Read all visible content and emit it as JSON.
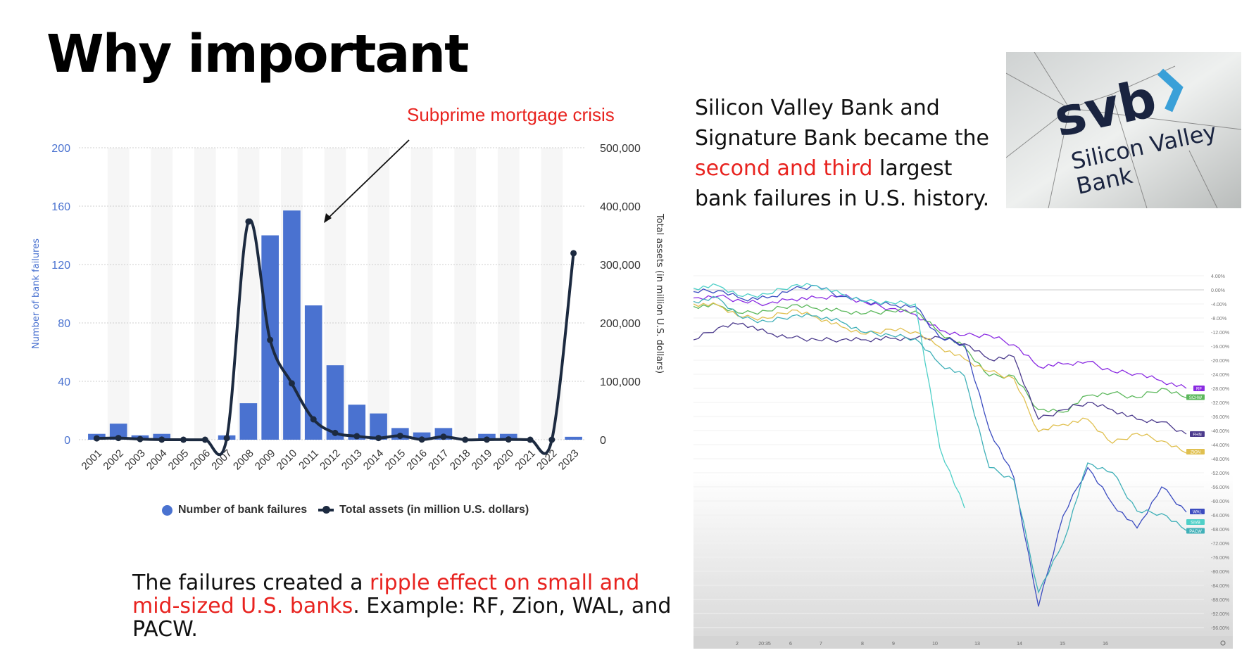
{
  "slide": {
    "title": "Why important",
    "annotation": "Subprime mortgage crisis",
    "right_text": {
      "part1": "Silicon Valley Bank and Signature Bank became the ",
      "highlight": "second and third",
      "part2": " largest bank failures in U.S. history."
    },
    "bottom_text": {
      "part1": "The failures created a ",
      "highlight": "ripple effect on small and mid-sized U.S. banks",
      "part2": ". Example: RF, Zion,  WAL, and PACW."
    },
    "image_logo": {
      "brand": "svb",
      "line1": "Silicon Valley",
      "line2": "Bank"
    },
    "colors": {
      "highlight": "#e8231f",
      "bars": "#4a72d0",
      "line": "#1c2a40",
      "axis_text": "#4a72d0"
    }
  },
  "chart_data": [
    {
      "type": "bar+line",
      "categories": [
        "2001",
        "2002",
        "2003",
        "2004",
        "2005",
        "2006",
        "2007",
        "2008",
        "2009",
        "2010",
        "2011",
        "2012",
        "2013",
        "2014",
        "2015",
        "2016",
        "2017",
        "2018",
        "2019",
        "2020",
        "2021",
        "2022",
        "2023"
      ],
      "series": [
        {
          "name": "Number of bank failures",
          "type": "bar",
          "axis": "left",
          "values": [
            4,
            11,
            3,
            4,
            0,
            0,
            3,
            25,
            140,
            157,
            92,
            51,
            24,
            18,
            8,
            5,
            8,
            0,
            4,
            4,
            0,
            0,
            2
          ]
        },
        {
          "name": "Total assets (in million U.S. dollars)",
          "type": "line",
          "axis": "right",
          "values": [
            2300,
            2900,
            1100,
            170,
            0,
            0,
            2600,
            373600,
            170900,
            96500,
            34900,
            11600,
            6000,
            2900,
            6700,
            300,
            5100,
            0,
            200,
            500,
            0,
            0,
            319400
          ]
        }
      ],
      "ylabel": "Number of bank failures",
      "y2label": "Total assets (in million U.S. dollars)",
      "ylim": [
        0,
        200
      ],
      "y2lim": [
        0,
        500000
      ],
      "yticks": [
        "0",
        "40",
        "80",
        "120",
        "160",
        "200"
      ],
      "y2ticks": [
        "0",
        "100,000",
        "200,000",
        "300,000",
        "400,000",
        "500,000"
      ],
      "grid": true,
      "legend": "bottom"
    },
    {
      "type": "line",
      "ylim": [
        -98,
        4
      ],
      "yticks": [
        "4.00%",
        "0.00%",
        "-4.00%",
        "-8.00%",
        "-12.00%",
        "-16.00%",
        "-20.00%",
        "-24.00%",
        "-28.00%",
        "-32.00%",
        "-36.00%",
        "-40.00%",
        "-44.00%",
        "-48.00%",
        "-52.00%",
        "-56.00%",
        "-60.00%",
        "-64.00%",
        "-68.00%",
        "-72.00%",
        "-76.00%",
        "-80.00%",
        "-84.00%",
        "-88.00%",
        "-92.00%",
        "-96.00%"
      ],
      "xticks": [
        "2",
        "20:35",
        "6",
        "7",
        "8",
        "9",
        "10",
        "13",
        "14",
        "15",
        "16"
      ],
      "series": [
        {
          "name": "RF",
          "color": "#8a2be2",
          "values": [
            -2.3,
            -1.8,
            -3.3,
            -4,
            -2.6,
            -2.3,
            -1.6,
            -3.7,
            -5.3,
            -7,
            -11.5,
            -12.9,
            -12.9,
            -15.6,
            -21.8,
            -21.1,
            -20.4,
            -23.2,
            -23.8,
            -25.9,
            -28
          ]
        },
        {
          "name": "SCHW",
          "color": "#5cb85c",
          "values": [
            -4.7,
            -4.4,
            -6.7,
            -6,
            -4.3,
            -5.3,
            -6,
            -6.7,
            -6,
            -6,
            -12.2,
            -16.3,
            -24.5,
            -24.5,
            -34.1,
            -34.8,
            -30,
            -29.3,
            -30.7,
            -28,
            -30.7
          ]
        },
        {
          "name": "FHN",
          "color": "#4b3a8c",
          "values": [
            -14.2,
            -10.8,
            -9.5,
            -12.3,
            -13.6,
            -14.2,
            -14.2,
            -14.2,
            -13.8,
            -13.8,
            -13.5,
            -15.3,
            -19.7,
            -19,
            -36.8,
            -34.1,
            -32,
            -34.1,
            -36.8,
            -37.5,
            -41
          ]
        },
        {
          "name": "ZION",
          "color": "#e0c050",
          "values": [
            -4,
            -4.4,
            -7.8,
            -8.1,
            -5.7,
            -7.8,
            -10.5,
            -12.6,
            -11.2,
            -11.9,
            -16.3,
            -19.7,
            -23.2,
            -25.2,
            -40.3,
            -38.2,
            -36.8,
            -43.6,
            -40.8,
            -42.9,
            -46.4
          ]
        },
        {
          "name": "WAL",
          "color": "#3b4cc0",
          "values": [
            -0.5,
            -0.2,
            -2.6,
            -2.3,
            0.1,
            1.2,
            -1.9,
            -3.3,
            -4.3,
            -4.7,
            -13.6,
            -15.6,
            -39.6,
            -53.3,
            -90,
            -64.2,
            -50.5,
            -60.8,
            -67.7,
            -56,
            -63.2
          ]
        },
        {
          "name": "SIVB",
          "color": "#4fd0c8",
          "values": [
            0.5,
            1.2,
            -1.9,
            -1.2,
            1.2,
            1.2,
            -1.2,
            -3.3,
            -3.6,
            -4,
            -45,
            -62,
            null,
            null,
            null,
            null,
            null,
            null,
            null,
            null,
            null
          ]
        },
        {
          "name": "PACW",
          "color": "#40b0b8",
          "values": [
            -3.3,
            -2.3,
            -8.1,
            -9.1,
            -7.4,
            -7.4,
            -9.1,
            -12.2,
            -12.9,
            -13.9,
            -21.1,
            -24.5,
            -50.5,
            -54,
            -86,
            -72,
            -49.2,
            -51.9,
            -62.9,
            -63.6,
            -68.4
          ]
        }
      ],
      "grid": true,
      "legend": "right-end labels"
    }
  ]
}
